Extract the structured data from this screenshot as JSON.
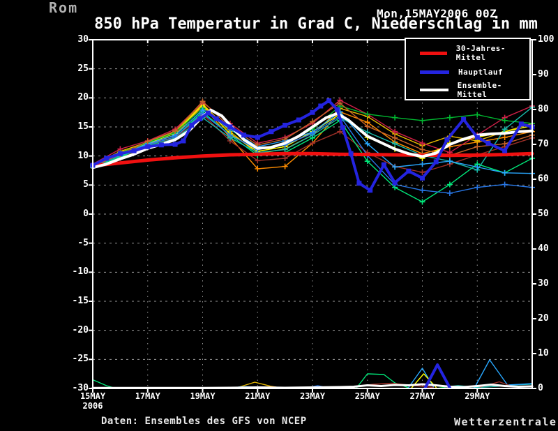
{
  "header": {
    "station": "Rom",
    "datetime": "Mon,15MAY2006 00Z",
    "title": "850 hPa Temperatur in Grad C, Niederschlag in mm"
  },
  "footer": {
    "source": "Daten: Ensembles des GFS von NCEP",
    "brand": "Wetterzentrale"
  },
  "colors": {
    "background": "#000000",
    "grid": "#9a9a9a",
    "axis": "#ffffff",
    "climate_mean": "#f01010",
    "hauptlauf": "#2424e0",
    "ensemble_mean": "#ffffff"
  },
  "chart_data": {
    "type": "line",
    "title": "850 hPa Temperatur in Grad C, Niederschlag in mm",
    "grid": true,
    "legend_position": "top-right",
    "x_axis": {
      "range_days": [
        0,
        16
      ],
      "ticks": [
        {
          "day": 0,
          "label": "15MAY",
          "sublabel": "2006"
        },
        {
          "day": 2,
          "label": "17MAY"
        },
        {
          "day": 4,
          "label": "19MAY"
        },
        {
          "day": 6,
          "label": "21MAY"
        },
        {
          "day": 8,
          "label": "23MAY"
        },
        {
          "day": 10,
          "label": "25MAY"
        },
        {
          "day": 12,
          "label": "27MAY"
        },
        {
          "day": 14,
          "label": "29MAY"
        }
      ]
    },
    "y_left": {
      "range": [
        -30,
        30
      ],
      "ticks": [
        30,
        25,
        20,
        15,
        10,
        5,
        0,
        -5,
        -10,
        -15,
        -20,
        -25,
        -30
      ]
    },
    "y_right": {
      "range": [
        0,
        100
      ],
      "ticks": [
        100,
        90,
        80,
        70,
        60,
        50,
        40,
        30,
        20,
        10,
        0
      ]
    },
    "legend": [
      {
        "label": "30-Jahres-Mittel",
        "color": "#f01010"
      },
      {
        "label": "Hauptlauf",
        "color": "#2424e0"
      },
      {
        "label": "Ensemble-Mittel",
        "color": "#ffffff"
      }
    ],
    "temperature_series": [
      {
        "name": "member-orange",
        "color": "#ff8c00",
        "width": 1.4,
        "marker": "plus",
        "x": [
          0,
          1,
          2,
          3,
          4,
          5,
          6,
          7,
          8,
          9,
          10,
          11,
          12,
          13,
          14,
          15,
          16
        ],
        "y": [
          8.2,
          10.4,
          12.0,
          13.6,
          18.6,
          13.2,
          7.8,
          8.2,
          12.2,
          17.6,
          15.8,
          12.4,
          10.4,
          11.6,
          12.4,
          13.2,
          14.2
        ]
      },
      {
        "name": "member-gold",
        "color": "#e6b800",
        "width": 1.4,
        "marker": "plus",
        "x": [
          0,
          1,
          2,
          3,
          4,
          5,
          6,
          7,
          8,
          9,
          10,
          11,
          12,
          13,
          14,
          15,
          16
        ],
        "y": [
          8.4,
          10.8,
          12.4,
          14.2,
          19.0,
          14.2,
          10.4,
          11.2,
          13.6,
          18.2,
          16.8,
          13.8,
          11.8,
          13.4,
          12.6,
          14.2,
          15.6
        ]
      },
      {
        "name": "member-yellow",
        "color": "#ffff00",
        "width": 1.4,
        "marker": "plus",
        "x": [
          0,
          1,
          2,
          3,
          4,
          5,
          6,
          7,
          8,
          9,
          10,
          11,
          12,
          13,
          14,
          15,
          16
        ],
        "y": [
          8.3,
          10.6,
          12.2,
          13.9,
          18.8,
          13.8,
          10.8,
          11.6,
          14.2,
          17.2,
          13.2,
          11.2,
          9.6,
          12.2,
          13.2,
          14.2,
          15.2
        ]
      },
      {
        "name": "member-crimson",
        "color": "#d02048",
        "width": 1.4,
        "marker": "plus",
        "x": [
          0,
          1,
          2,
          3,
          4,
          5,
          6,
          7,
          8,
          9,
          10,
          11,
          12,
          13,
          14,
          15,
          16
        ],
        "y": [
          8.6,
          11.2,
          12.6,
          14.6,
          19.2,
          15.6,
          12.2,
          13.2,
          15.6,
          19.6,
          17.2,
          14.2,
          12.2,
          10.6,
          13.6,
          16.6,
          18.6
        ]
      },
      {
        "name": "member-darkred",
        "color": "#a03028",
        "width": 1.4,
        "marker": "plus",
        "x": [
          0,
          1,
          2,
          3,
          4,
          5,
          6,
          7,
          8,
          9,
          10,
          11,
          12,
          13,
          14,
          15,
          16
        ],
        "y": [
          8.0,
          9.6,
          11.6,
          13.1,
          17.2,
          12.6,
          9.2,
          9.6,
          12.2,
          14.2,
          10.6,
          8.2,
          7.2,
          8.6,
          10.2,
          11.6,
          13.1
        ]
      },
      {
        "name": "member-green",
        "color": "#00b830",
        "width": 1.4,
        "marker": "plus",
        "x": [
          0,
          1,
          2,
          3,
          4,
          5,
          6,
          7,
          8,
          9,
          10,
          11,
          12,
          13,
          14,
          15,
          16
        ],
        "y": [
          8.5,
          10.5,
          12.3,
          14.0,
          18.2,
          14.6,
          11.2,
          12.2,
          14.6,
          18.6,
          17.2,
          16.6,
          16.1,
          16.6,
          17.1,
          16.1,
          15.6
        ]
      },
      {
        "name": "member-springgreen",
        "color": "#00e87a",
        "width": 1.4,
        "marker": "plus",
        "x": [
          0,
          1,
          2,
          3,
          4,
          5,
          6,
          7,
          8,
          9,
          10,
          11,
          12,
          13,
          14,
          15,
          16
        ],
        "y": [
          8.0,
          9.8,
          11.8,
          13.3,
          17.6,
          13.6,
          10.1,
          10.6,
          13.1,
          16.1,
          9.1,
          4.6,
          2.1,
          5.1,
          8.6,
          7.1,
          9.6
        ]
      },
      {
        "name": "member-teal",
        "color": "#18b8a8",
        "width": 1.4,
        "marker": "plus",
        "x": [
          0,
          1,
          2,
          3,
          4,
          5,
          6,
          7,
          8,
          9,
          10,
          11,
          12,
          13,
          14,
          15,
          16
        ],
        "y": [
          8.1,
          10.0,
          11.6,
          13.0,
          16.6,
          13.1,
          10.6,
          11.1,
          13.6,
          16.6,
          14.1,
          12.1,
          10.1,
          9.1,
          7.6,
          14.6,
          18.4
        ]
      },
      {
        "name": "member-deepsky",
        "color": "#28a8ff",
        "width": 1.4,
        "marker": "plus",
        "x": [
          0,
          1,
          2,
          3,
          4,
          5,
          6,
          7,
          8,
          9,
          10,
          11,
          12,
          13,
          14,
          15,
          16
        ],
        "y": [
          8.3,
          10.2,
          12.1,
          13.6,
          17.9,
          14.6,
          11.6,
          12.6,
          14.1,
          17.6,
          12.1,
          8.1,
          8.6,
          9.1,
          8.1,
          7.1,
          7.0
        ]
      },
      {
        "name": "member-dodgerblue",
        "color": "#2878e8",
        "width": 1.4,
        "marker": "plus",
        "x": [
          0,
          1,
          2,
          3,
          4,
          5,
          6,
          7,
          8,
          9,
          10,
          11,
          12,
          13,
          14,
          15,
          16
        ],
        "y": [
          8.4,
          10.4,
          11.9,
          13.3,
          17.3,
          13.6,
          11.1,
          11.9,
          13.9,
          16.9,
          10.1,
          5.1,
          4.1,
          3.6,
          4.6,
          5.1,
          4.6
        ]
      },
      {
        "name": "member-chocolate",
        "color": "#c86428",
        "width": 1.4,
        "marker": "plus",
        "x": [
          0,
          1,
          2,
          3,
          4,
          5,
          6,
          7,
          8,
          9,
          10,
          11,
          12,
          13,
          14,
          15,
          16
        ],
        "y": [
          8.2,
          10.3,
          12.5,
          14.3,
          19.4,
          14.9,
          11.9,
          12.9,
          15.9,
          19.1,
          15.1,
          13.1,
          11.1,
          10.1,
          11.6,
          12.1,
          13.6
        ]
      },
      {
        "name": "30-jahres-mittel",
        "color": "#f01010",
        "width": 5,
        "marker": "none",
        "x": [
          0,
          1,
          2,
          3,
          4,
          5,
          6,
          7,
          8,
          9,
          10,
          11,
          12,
          13,
          14,
          15,
          16
        ],
        "y": [
          8.3,
          8.8,
          9.3,
          9.7,
          10.0,
          10.2,
          10.3,
          10.4,
          10.4,
          10.3,
          10.25,
          10.2,
          10.15,
          10.1,
          10.15,
          10.25,
          10.4
        ]
      },
      {
        "name": "ensemble-mittel",
        "color": "#ffffff",
        "width": 4,
        "marker": "none",
        "x": [
          0,
          0.5,
          1,
          1.5,
          2,
          2.5,
          3,
          3.5,
          4,
          4.3,
          4.7,
          5,
          5.5,
          6,
          6.5,
          7,
          7.5,
          8,
          8.5,
          8.9,
          9.3,
          9.7,
          10,
          10.5,
          11,
          11.5,
          12,
          12.5,
          13,
          13.5,
          14,
          14.5,
          15,
          15.5,
          16
        ],
        "y": [
          8.0,
          8.6,
          9.5,
          10.3,
          11.3,
          12.0,
          12.8,
          14.3,
          16.8,
          17.9,
          16.9,
          15.3,
          12.8,
          11.3,
          11.5,
          12.2,
          13.4,
          15.0,
          16.6,
          17.3,
          16.2,
          14.6,
          13.4,
          12.3,
          11.2,
          10.4,
          9.9,
          10.5,
          12.0,
          12.9,
          13.6,
          13.8,
          13.9,
          14.2,
          14.3
        ]
      },
      {
        "name": "hauptlauf",
        "color": "#2424e0",
        "width": 4,
        "marker": "square",
        "x": [
          0,
          0.5,
          1,
          1.5,
          2,
          2.5,
          3,
          3.3,
          3.6,
          3.9,
          4.2,
          4.5,
          5,
          5.5,
          6,
          6.5,
          7,
          7.5,
          8,
          8.3,
          8.6,
          8.9,
          9.1,
          9.4,
          9.7,
          10.1,
          10.6,
          11,
          11.5,
          12,
          12.5,
          12.9,
          13.5,
          14,
          14.4,
          15,
          15.6,
          16
        ],
        "y": [
          8.4,
          9.6,
          10.4,
          10.9,
          11.6,
          11.9,
          12.0,
          12.6,
          15.3,
          16.4,
          17.4,
          16.4,
          15.0,
          13.6,
          13.2,
          14.2,
          15.3,
          16.2,
          17.5,
          18.6,
          19.5,
          18.0,
          14.9,
          10.4,
          5.3,
          4.1,
          8.5,
          5.4,
          7.4,
          6.2,
          9.0,
          12.8,
          16.3,
          13.2,
          12.2,
          10.9,
          15.5,
          15.0
        ]
      }
    ],
    "precipitation_series": [
      {
        "name": "precip-springgreen-start",
        "color": "#00e87a",
        "width": 1.4,
        "x": [
          0,
          0.5,
          0.8
        ],
        "y": [
          2.5,
          0.8,
          0.1
        ]
      },
      {
        "name": "precip-gold-21may",
        "color": "#e6b800",
        "width": 1.4,
        "x": [
          5.2,
          5.9,
          6.5,
          6.9
        ],
        "y": [
          0.1,
          1.8,
          0.6,
          0.1
        ]
      },
      {
        "name": "precip-deepsky-20may",
        "color": "#28a8ff",
        "width": 1.4,
        "x": [
          5.3,
          5.6,
          5.9
        ],
        "y": [
          0.4,
          0.5,
          0.3
        ]
      },
      {
        "name": "precip-red-21may",
        "color": "#d02048",
        "width": 1.4,
        "x": [
          5.8,
          6.2,
          6.6
        ],
        "y": [
          0.3,
          0.4,
          0.2
        ]
      },
      {
        "name": "precip-orange-21may",
        "color": "#ff8c00",
        "width": 1.4,
        "x": [
          6.1,
          6.5,
          6.9
        ],
        "y": [
          0.3,
          0.5,
          0.2
        ]
      },
      {
        "name": "precip-blue-23may",
        "color": "#2878e8",
        "width": 1.4,
        "x": [
          7.8,
          8.2,
          8.6
        ],
        "y": [
          0.2,
          0.8,
          0.1
        ]
      },
      {
        "name": "precip-springgreen-25may",
        "color": "#00e87a",
        "width": 1.4,
        "x": [
          9.6,
          10.0,
          10.6,
          11.0,
          11.5
        ],
        "y": [
          0.1,
          4.2,
          4.0,
          1.6,
          0.2
        ]
      },
      {
        "name": "precip-darkred-25may",
        "color": "#a03028",
        "width": 1.4,
        "x": [
          9.4,
          10.2,
          10.9,
          11.7,
          12.4
        ],
        "y": [
          0.2,
          1.2,
          1.5,
          0.8,
          0.3
        ]
      },
      {
        "name": "precip-deepsky-27may",
        "color": "#28a8ff",
        "width": 1.4,
        "x": [
          11.5,
          12.0,
          12.4
        ],
        "y": [
          0.3,
          5.8,
          0.5
        ]
      },
      {
        "name": "precip-yellow-27may",
        "color": "#ffff00",
        "width": 1.4,
        "x": [
          11.6,
          12.05,
          12.5
        ],
        "y": [
          0.1,
          4.2,
          0.3
        ]
      },
      {
        "name": "precip-green-28may",
        "color": "#00b830",
        "width": 1.4,
        "x": [
          12.6,
          13.0,
          13.5
        ],
        "y": [
          0.1,
          0.6,
          0.2
        ]
      },
      {
        "name": "precip-teal-late",
        "color": "#18b8a8",
        "width": 1.4,
        "x": [
          12.8,
          13.3,
          14.0,
          14.7,
          15.3,
          15.9,
          16
        ],
        "y": [
          0.4,
          0.8,
          0.3,
          0.6,
          1.0,
          1.2,
          1.3
        ]
      },
      {
        "name": "precip-deepsky-29may",
        "color": "#28a8ff",
        "width": 1.4,
        "x": [
          13.9,
          14.45,
          15.1,
          15.6,
          16
        ],
        "y": [
          0.2,
          8.2,
          1.0,
          1.2,
          1.4
        ]
      },
      {
        "name": "precip-darkred-29may",
        "color": "#a03028",
        "width": 1.4,
        "x": [
          14.1,
          14.8,
          15.3
        ],
        "y": [
          0.4,
          1.9,
          0.5
        ]
      },
      {
        "name": "precip-ensemble-mean",
        "color": "#ffffff",
        "width": 3,
        "x": [
          0,
          1,
          2,
          3,
          4,
          5,
          6,
          7,
          8,
          9,
          9.5,
          10,
          10.5,
          11,
          11.5,
          12,
          12.5,
          13,
          13.5,
          14,
          14.5,
          15,
          15.5,
          16
        ],
        "y": [
          0.15,
          0.15,
          0.15,
          0.15,
          0.15,
          0.2,
          0.3,
          0.2,
          0.3,
          0.4,
          0.5,
          0.9,
          0.7,
          1.0,
          0.9,
          1.2,
          0.9,
          0.5,
          0.4,
          0.7,
          1.1,
          0.7,
          0.5,
          0.6
        ]
      },
      {
        "name": "precip-hauptlauf",
        "color": "#2424e0",
        "width": 4,
        "x": [
          12.1,
          12.55,
          13.0
        ],
        "y": [
          0.1,
          6.8,
          0.2
        ]
      }
    ]
  }
}
